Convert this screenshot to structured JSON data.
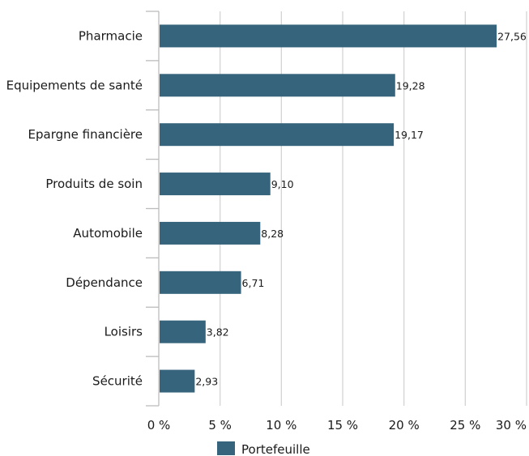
{
  "chart_data": {
    "type": "bar",
    "orientation": "horizontal",
    "categories": [
      "Pharmacie",
      "Equipements de santé",
      "Epargne financière",
      "Produits de soin",
      "Automobile",
      "Dépendance",
      "Loisirs",
      "Sécurité"
    ],
    "series": [
      {
        "name": "Portefeuille",
        "values": [
          27.56,
          19.28,
          19.17,
          9.1,
          8.28,
          6.71,
          3.82,
          2.93
        ],
        "data_labels": [
          "27,56",
          "19,28",
          "19,17",
          "9,10",
          "8,28",
          "6,71",
          "3,82",
          "2,93"
        ],
        "color": "#35647c"
      }
    ],
    "xlim": [
      0,
      30
    ],
    "xticks": [
      0,
      5,
      10,
      15,
      20,
      25,
      30
    ],
    "xtick_labels": [
      "0 %",
      "5 %",
      "10 %",
      "15 %",
      "20 %",
      "25 %",
      "30 %"
    ],
    "grid": true,
    "legend_position": "bottom"
  },
  "colors": {
    "bar": "#35647c",
    "grid": "#d4d4d4",
    "axis": "#bcbcbc"
  }
}
